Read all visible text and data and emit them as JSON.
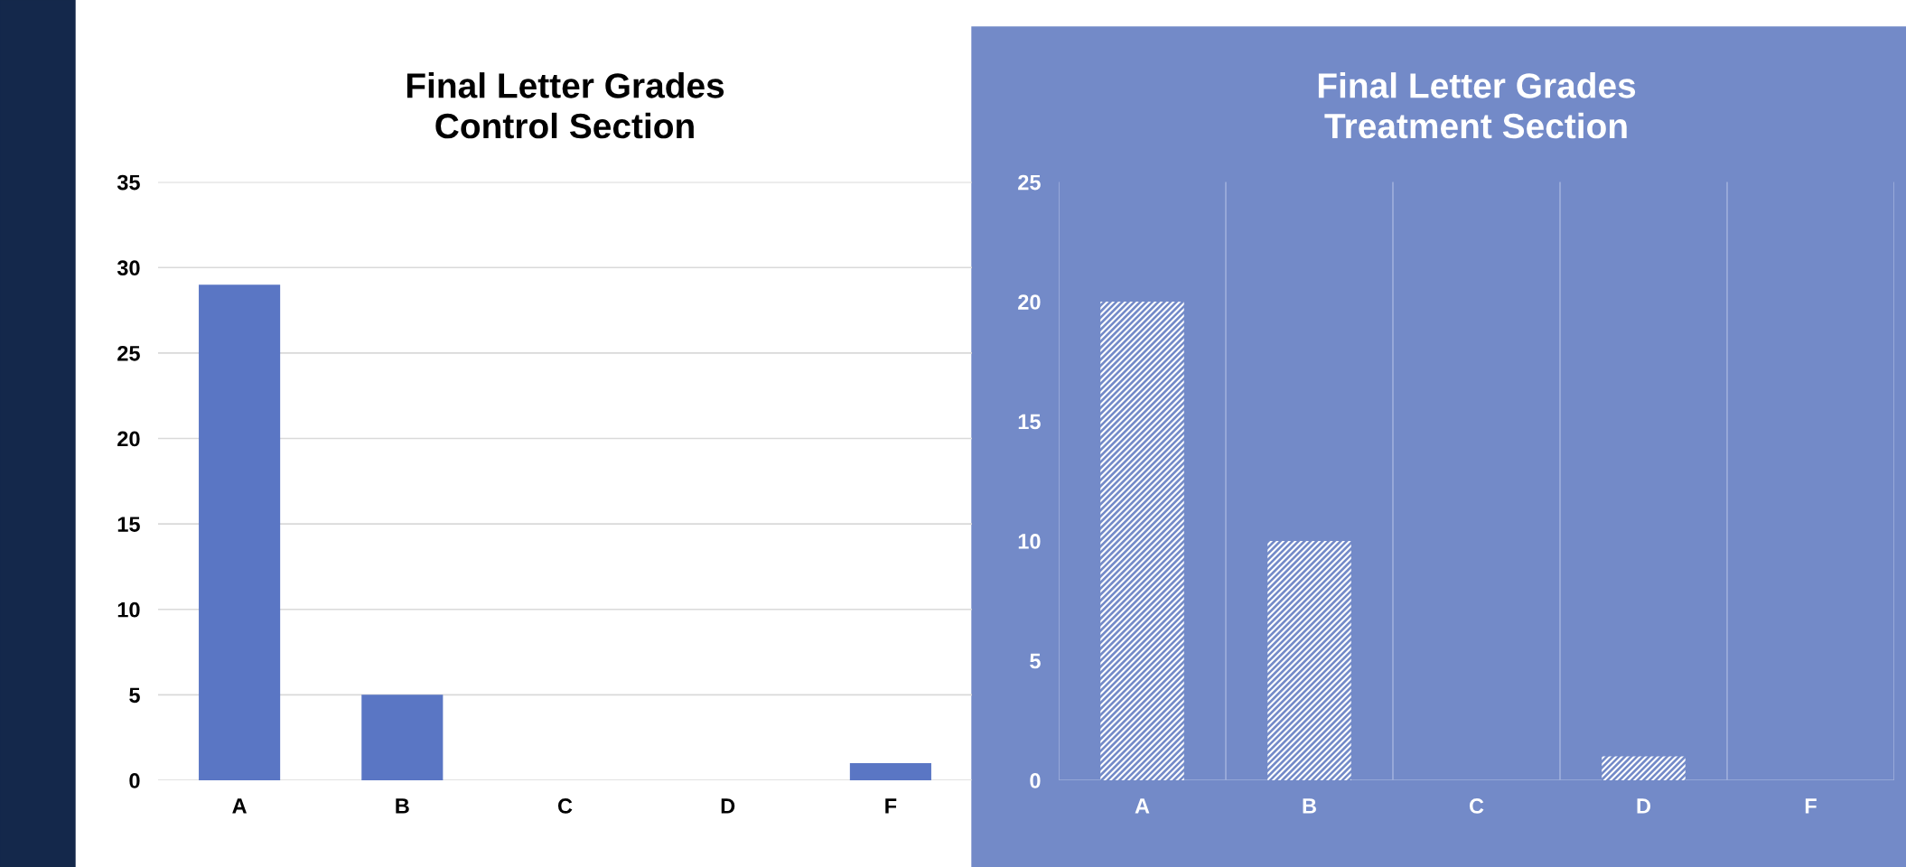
{
  "chart_data": [
    {
      "type": "bar",
      "title": "Final Letter Grades\nControl Section",
      "categories": [
        "A",
        "B",
        "C",
        "D",
        "F"
      ],
      "values": [
        29,
        5,
        0,
        0,
        1
      ],
      "color": "#5a76c4",
      "ylim": [
        0,
        35
      ],
      "yticks": [
        0,
        5,
        10,
        15,
        20,
        25,
        30,
        35
      ],
      "grid": "y"
    },
    {
      "type": "bar",
      "title": "Final Letter Grades\nTreatment Section",
      "categories": [
        "A",
        "B",
        "C",
        "D",
        "F"
      ],
      "values": [
        20,
        10,
        0,
        1,
        0
      ],
      "color": "#ffffff",
      "ylim": [
        0,
        25
      ],
      "yticks": [
        0,
        5,
        10,
        15,
        20,
        25
      ],
      "grid": "x"
    }
  ]
}
